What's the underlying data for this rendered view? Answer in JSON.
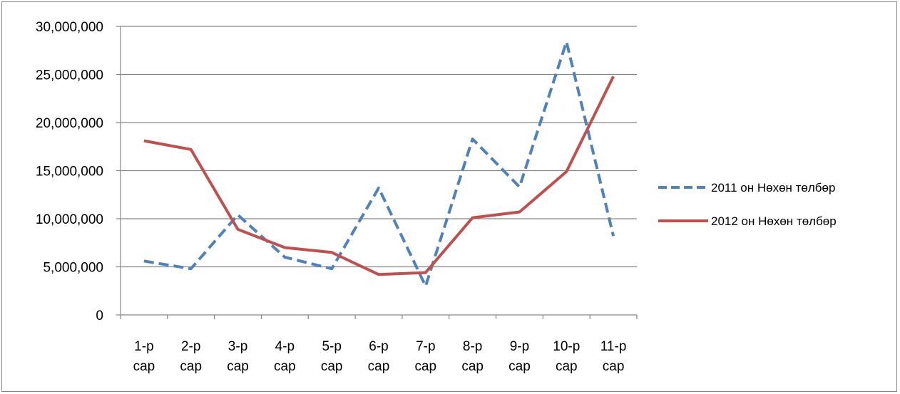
{
  "chart_data": {
    "type": "line",
    "title": "",
    "xlabel": "",
    "ylabel": "",
    "categories": [
      [
        "1-р",
        "сар"
      ],
      [
        "2-р",
        "сар"
      ],
      [
        "3-р",
        "сар"
      ],
      [
        "4-р",
        "сар"
      ],
      [
        "5-р",
        "сар"
      ],
      [
        "6-р",
        "сар"
      ],
      [
        "7-р",
        "сар"
      ],
      [
        "8-р",
        "сар"
      ],
      [
        "9-р",
        "сар"
      ],
      [
        "10-р",
        "сар"
      ],
      [
        "11-р",
        "сар"
      ]
    ],
    "ylim": [
      0,
      30000000
    ],
    "yticks": [
      0,
      5000000,
      10000000,
      15000000,
      20000000,
      25000000,
      30000000
    ],
    "ytick_labels": [
      "0",
      "5,000,000",
      "10,000,000",
      "15,000,000",
      "20,000,000",
      "25,000,000",
      "30,000,000"
    ],
    "grid": true,
    "legend_position": "right",
    "series": [
      {
        "name": "2011 он Нөхөн төлбөр",
        "color": "#4F81BD",
        "style": "dashed",
        "values": [
          5600000,
          4800000,
          10400000,
          6000000,
          4800000,
          13200000,
          3000000,
          18300000,
          13300000,
          28400000,
          8200000
        ]
      },
      {
        "name": "2012 он Нөхөн төлбөр",
        "color": "#C0504D",
        "style": "solid",
        "values": [
          18100000,
          17200000,
          8900000,
          7000000,
          6500000,
          4200000,
          4400000,
          10100000,
          10700000,
          14900000,
          24800000
        ]
      }
    ]
  }
}
